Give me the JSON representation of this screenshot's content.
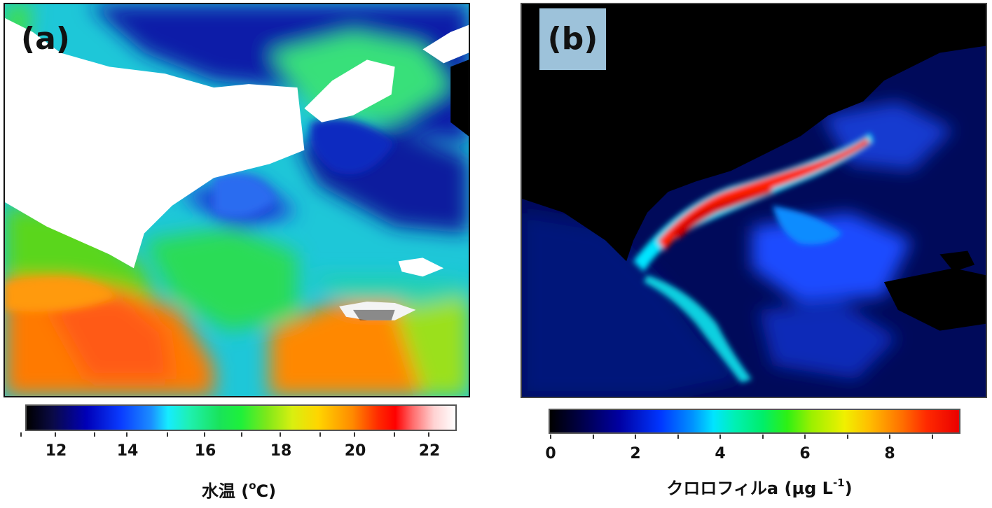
{
  "panels": [
    {
      "label": "(a)",
      "colorbar": {
        "ticks": [
          "12",
          "14",
          "16",
          "18",
          "20",
          "22"
        ],
        "title_main": "水温 (",
        "title_sup": "o",
        "title_end": "C)"
      },
      "colors": {
        "cold": "#0a1aa8",
        "mid": "#19e35a",
        "warm": "#ff7a00",
        "land": "#ffffff"
      }
    },
    {
      "label": "(b)",
      "colorbar": {
        "ticks": [
          "0",
          "2",
          "4",
          "6",
          "8"
        ],
        "title_main": "クロロフィルa (µg L",
        "title_sup": "-1",
        "title_end": ")"
      },
      "colors": {
        "low": "#000a5a",
        "mid": "#00e5ff",
        "high": "#e80000",
        "land": "#000000"
      }
    }
  ]
}
